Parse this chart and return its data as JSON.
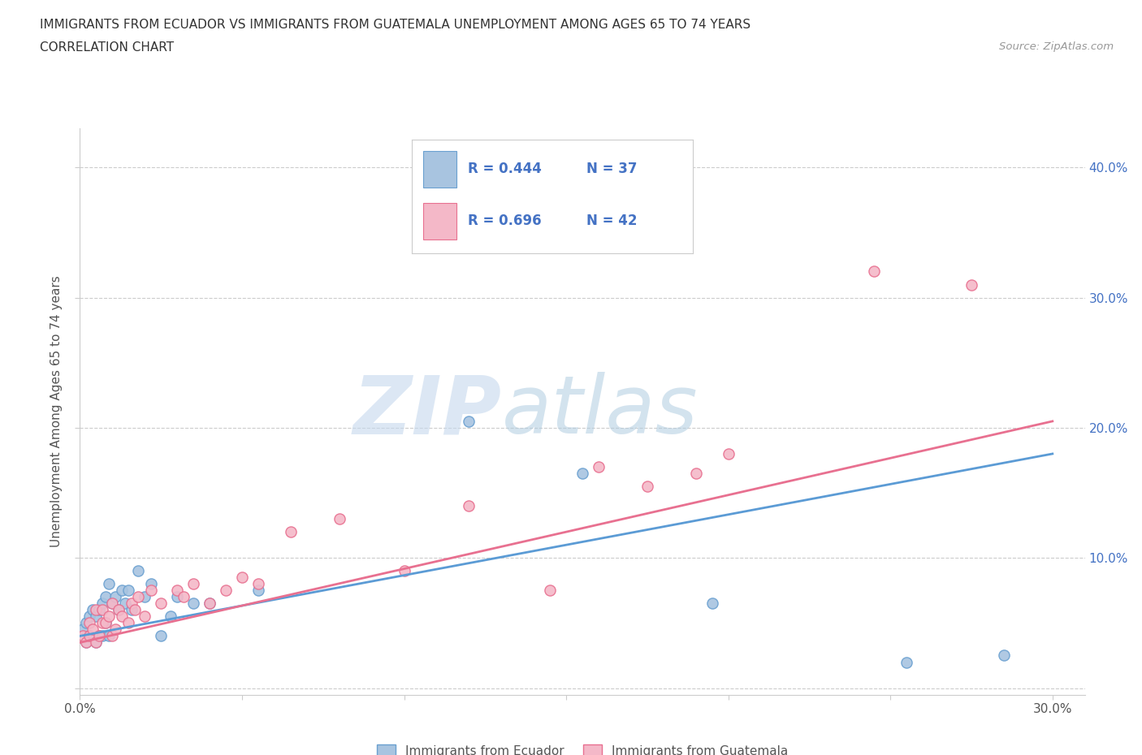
{
  "title_line1": "IMMIGRANTS FROM ECUADOR VS IMMIGRANTS FROM GUATEMALA UNEMPLOYMENT AMONG AGES 65 TO 74 YEARS",
  "title_line2": "CORRELATION CHART",
  "source": "Source: ZipAtlas.com",
  "ylabel": "Unemployment Among Ages 65 to 74 years",
  "xlim": [
    0.0,
    0.31
  ],
  "ylim": [
    -0.005,
    0.43
  ],
  "xticks": [
    0.0,
    0.05,
    0.1,
    0.15,
    0.2,
    0.25,
    0.3
  ],
  "yticks": [
    0.0,
    0.1,
    0.2,
    0.3,
    0.4
  ],
  "ecuador_color": "#a8c4e0",
  "ecuador_edge": "#6aa0d0",
  "guatemala_color": "#f4b8c8",
  "guatemala_edge": "#e87090",
  "ecuador_line_color": "#5b9bd5",
  "guatemala_line_color": "#e87090",
  "ecuador_R": 0.444,
  "ecuador_N": 37,
  "guatemala_R": 0.696,
  "guatemala_N": 42,
  "watermark_zip": "ZIP",
  "watermark_atlas": "atlas",
  "ecuador_x": [
    0.001,
    0.002,
    0.002,
    0.003,
    0.003,
    0.004,
    0.005,
    0.005,
    0.006,
    0.006,
    0.007,
    0.007,
    0.008,
    0.008,
    0.009,
    0.009,
    0.01,
    0.011,
    0.012,
    0.013,
    0.014,
    0.015,
    0.016,
    0.018,
    0.02,
    0.022,
    0.025,
    0.028,
    0.03,
    0.035,
    0.04,
    0.055,
    0.12,
    0.155,
    0.195,
    0.255,
    0.285
  ],
  "ecuador_y": [
    0.045,
    0.035,
    0.05,
    0.04,
    0.055,
    0.06,
    0.035,
    0.055,
    0.04,
    0.06,
    0.04,
    0.065,
    0.05,
    0.07,
    0.04,
    0.08,
    0.065,
    0.07,
    0.06,
    0.075,
    0.065,
    0.075,
    0.06,
    0.09,
    0.07,
    0.08,
    0.04,
    0.055,
    0.07,
    0.065,
    0.065,
    0.075,
    0.205,
    0.165,
    0.065,
    0.02,
    0.025
  ],
  "guatemala_x": [
    0.001,
    0.002,
    0.003,
    0.003,
    0.004,
    0.005,
    0.005,
    0.006,
    0.007,
    0.007,
    0.008,
    0.009,
    0.01,
    0.01,
    0.011,
    0.012,
    0.013,
    0.015,
    0.016,
    0.017,
    0.018,
    0.02,
    0.022,
    0.025,
    0.03,
    0.032,
    0.035,
    0.04,
    0.045,
    0.05,
    0.055,
    0.065,
    0.08,
    0.1,
    0.12,
    0.145,
    0.16,
    0.175,
    0.19,
    0.2,
    0.245,
    0.275
  ],
  "guatemala_y": [
    0.04,
    0.035,
    0.04,
    0.05,
    0.045,
    0.035,
    0.06,
    0.04,
    0.05,
    0.06,
    0.05,
    0.055,
    0.04,
    0.065,
    0.045,
    0.06,
    0.055,
    0.05,
    0.065,
    0.06,
    0.07,
    0.055,
    0.075,
    0.065,
    0.075,
    0.07,
    0.08,
    0.065,
    0.075,
    0.085,
    0.08,
    0.12,
    0.13,
    0.09,
    0.14,
    0.075,
    0.17,
    0.155,
    0.165,
    0.18,
    0.32,
    0.31
  ],
  "background_color": "#ffffff",
  "grid_color": "#cccccc",
  "legend_text_color": "#4472c4"
}
